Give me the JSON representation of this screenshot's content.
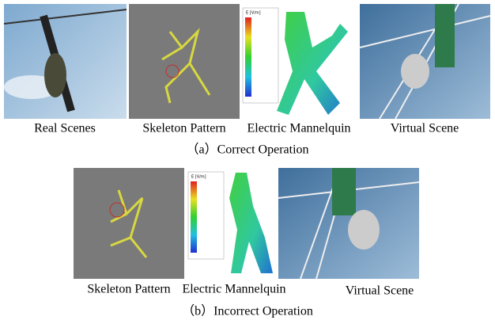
{
  "figure": {
    "row_a": {
      "labels": [
        "Real Scenes",
        "Skeleton Pattern",
        "Electric Mannelquin",
        "Virtual Scene"
      ],
      "legend_title": "E [V/m]",
      "caption": "（a）Correct Operation"
    },
    "row_b": {
      "labels": [
        "Skeleton Pattern",
        "Electric Mannelquin",
        "Virtual Scene"
      ],
      "legend_title": "E [V/m]",
      "caption": "（b）Incorrect Operation"
    }
  }
}
